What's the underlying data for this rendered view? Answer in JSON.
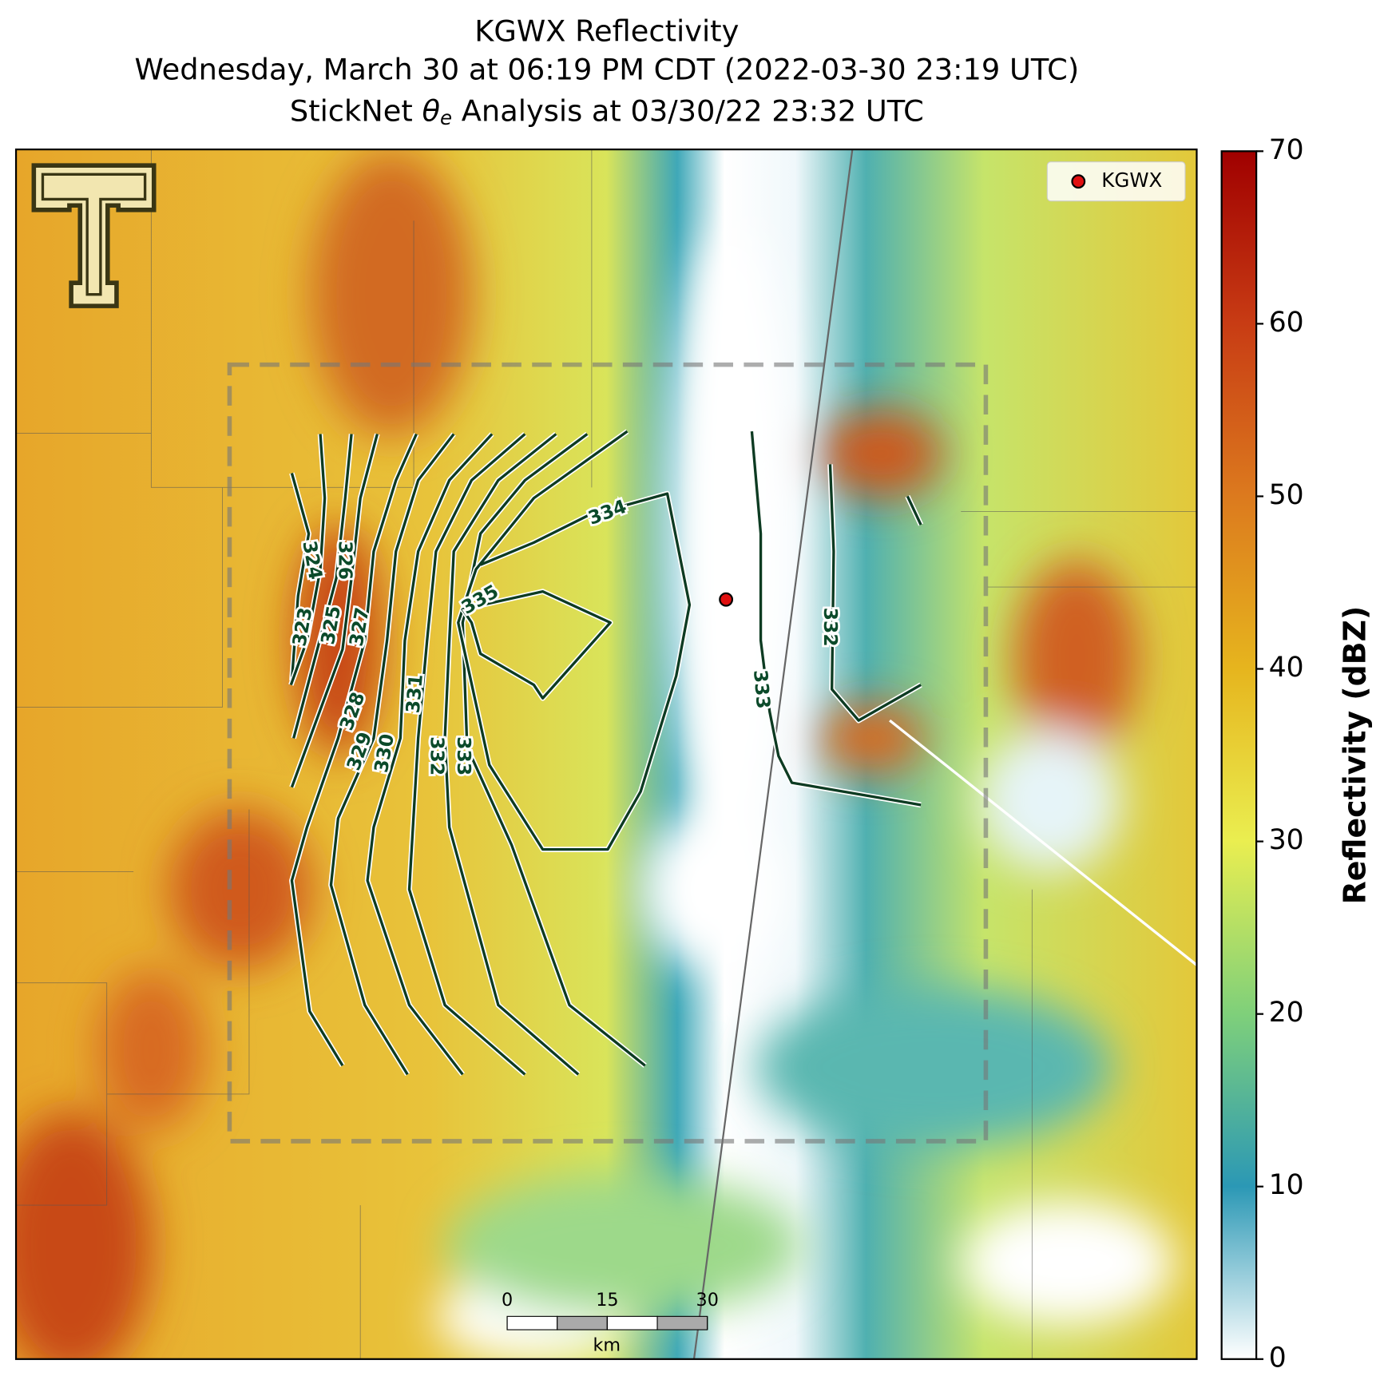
{
  "title": [
    "KGWX Reflectivity",
    "Wednesday, March 30 at 06:19 PM CDT (2022-03-30 23:19 UTC)"
  ],
  "title_analysis": [
    "StickNet ",
    "θ",
    "e",
    " Analysis at 03/30/22 23:32 UTC"
  ],
  "legend": {
    "label": "KGWX"
  },
  "colorbar": {
    "label": "Reflectivity (dBZ)",
    "lim": [
      0,
      70
    ],
    "ticks": [
      0,
      10,
      20,
      30,
      40,
      50,
      60,
      70
    ]
  },
  "contour_labels": [
    323,
    324,
    325,
    326,
    327,
    328,
    329,
    330,
    331,
    332,
    333,
    334,
    335,
    332,
    333
  ],
  "scale_bar": {
    "lim": [
      0,
      30
    ],
    "ticks": [
      0,
      15,
      30
    ],
    "unit": "km"
  }
}
